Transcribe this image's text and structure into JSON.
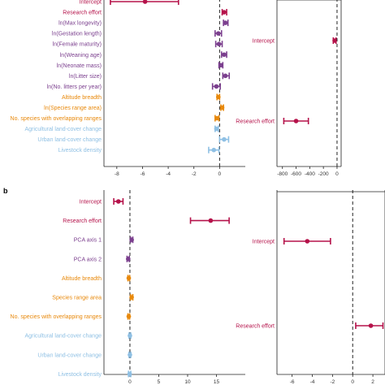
{
  "figure": {
    "panel_b_label": "b",
    "colors": {
      "red": "#b5124a",
      "purple": "#7b3f8e",
      "orange": "#e8890c",
      "lightblue": "#8fc0e4",
      "axis": "#222222",
      "zero_line": "#222222"
    }
  },
  "chart_data": [
    {
      "id": "a_left",
      "type": "scatter",
      "title": "",
      "xlabel": "",
      "ylabel": "",
      "xlim": [
        -9,
        2
      ],
      "xticks": [
        -8,
        -6,
        -4,
        -2,
        0
      ],
      "zero_line": 0,
      "grid": false,
      "points": [
        {
          "label": "Intercept",
          "est": -5.8,
          "lo": -8.5,
          "hi": -3.2,
          "color": "red"
        },
        {
          "label": "Research effort",
          "est": 0.35,
          "lo": 0.2,
          "hi": 0.55,
          "color": "red"
        },
        {
          "label": "ln(Max longevity)",
          "est": 0.45,
          "lo": 0.3,
          "hi": 0.65,
          "color": "purple"
        },
        {
          "label": "ln(Gestation length)",
          "est": -0.1,
          "lo": -0.35,
          "hi": 0.15,
          "color": "purple"
        },
        {
          "label": "ln(Female maturity)",
          "est": -0.05,
          "lo": -0.3,
          "hi": 0.2,
          "color": "purple"
        },
        {
          "label": "ln(Weaning age)",
          "est": 0.35,
          "lo": 0.15,
          "hi": 0.55,
          "color": "purple"
        },
        {
          "label": "ln(Neonate mass)",
          "est": 0.1,
          "lo": -0.05,
          "hi": 0.25,
          "color": "purple"
        },
        {
          "label": "ln(Litter size)",
          "est": 0.45,
          "lo": 0.25,
          "hi": 0.75,
          "color": "purple"
        },
        {
          "label": "ln(No. litters per year)",
          "est": -0.25,
          "lo": -0.55,
          "hi": 0.05,
          "color": "purple"
        },
        {
          "label": "Altitude breadth",
          "est": -0.1,
          "lo": -0.2,
          "hi": 0.0,
          "color": "orange"
        },
        {
          "label": "ln(Species range area)",
          "est": 0.2,
          "lo": 0.1,
          "hi": 0.3,
          "color": "orange"
        },
        {
          "label": "No. species with overlapping ranges",
          "est": -0.2,
          "lo": -0.35,
          "hi": -0.05,
          "color": "orange"
        },
        {
          "label": "Agricultural land-cover change",
          "est": -0.25,
          "lo": -0.35,
          "hi": -0.1,
          "color": "lightblue"
        },
        {
          "label": "Urban land-cover change",
          "est": 0.35,
          "lo": 0.0,
          "hi": 0.7,
          "color": "lightblue"
        },
        {
          "label": "Livestock density",
          "est": -0.45,
          "lo": -0.85,
          "hi": -0.05,
          "color": "lightblue"
        }
      ]
    },
    {
      "id": "a_right",
      "type": "scatter",
      "title": "",
      "xlabel": "",
      "ylabel": "",
      "xlim": [
        -880,
        60
      ],
      "xticks": [
        -800,
        -600,
        -400,
        -200,
        0
      ],
      "zero_line": 0,
      "grid": false,
      "points": [
        {
          "label": "Intercept",
          "est": -35,
          "lo": -55,
          "hi": -15,
          "color": "red"
        },
        {
          "label": "Research effort",
          "est": -600,
          "lo": -780,
          "hi": -420,
          "color": "red"
        }
      ]
    },
    {
      "id": "b_left",
      "type": "scatter",
      "title": "",
      "xlabel": "",
      "ylabel": "",
      "xlim": [
        -4.5,
        20
      ],
      "xticks": [
        0,
        5,
        10,
        15
      ],
      "zero_line": 0,
      "grid": false,
      "points": [
        {
          "label": "Intercept",
          "est": -2.0,
          "lo": -2.8,
          "hi": -1.2,
          "color": "red"
        },
        {
          "label": "Research effort",
          "est": 14.0,
          "lo": 10.5,
          "hi": 17.2,
          "color": "red"
        },
        {
          "label": "PCA axis 1",
          "est": 0.3,
          "lo": 0.1,
          "hi": 0.5,
          "color": "purple"
        },
        {
          "label": "PCA axis 2",
          "est": -0.3,
          "lo": -0.5,
          "hi": -0.1,
          "color": "purple"
        },
        {
          "label": "Altitude breadth",
          "est": -0.2,
          "lo": -0.35,
          "hi": -0.05,
          "color": "orange"
        },
        {
          "label": "Species range area",
          "est": 0.3,
          "lo": 0.1,
          "hi": 0.5,
          "color": "orange"
        },
        {
          "label": "No. species with overlapping ranges",
          "est": -0.2,
          "lo": -0.35,
          "hi": -0.05,
          "color": "orange"
        },
        {
          "label": "Agricultural land-cover change",
          "est": 0.0,
          "lo": -0.15,
          "hi": 0.15,
          "color": "lightblue"
        },
        {
          "label": "Urban land-cover change",
          "est": 0.0,
          "lo": -0.15,
          "hi": 0.15,
          "color": "lightblue"
        },
        {
          "label": "Livestock density",
          "est": -0.05,
          "lo": -0.25,
          "hi": 0.15,
          "color": "lightblue"
        }
      ]
    },
    {
      "id": "b_right",
      "type": "scatter",
      "title": "",
      "xlabel": "",
      "ylabel": "",
      "xlim": [
        -7.5,
        3.2
      ],
      "xticks": [
        -6,
        -4,
        -2,
        0,
        2
      ],
      "zero_line": 0,
      "grid": false,
      "points": [
        {
          "label": "Intercept",
          "est": -4.5,
          "lo": -6.8,
          "hi": -2.2,
          "color": "red"
        },
        {
          "label": "Research effort",
          "est": 1.8,
          "lo": 0.3,
          "hi": 3.0,
          "color": "red"
        }
      ]
    }
  ]
}
